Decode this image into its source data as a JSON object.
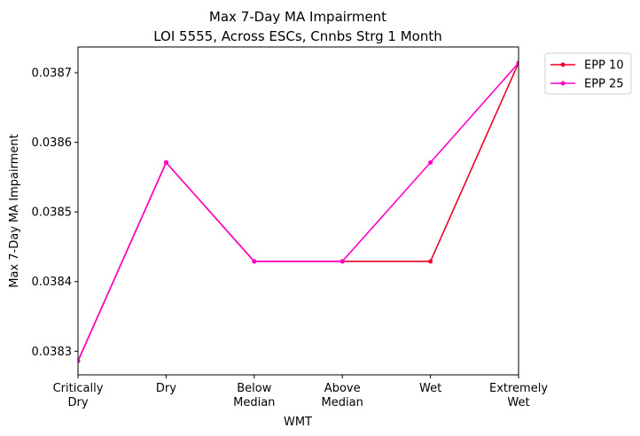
{
  "chart_data": {
    "type": "line",
    "title_line1": "Max 7-Day MA Impairment",
    "title_line2": "LOI 5555, Across ESCs, Cnnbs Strg 1 Month",
    "xlabel": "WMT",
    "ylabel": "Max 7-Day MA Impairment",
    "categories": [
      [
        "Critically",
        "Dry"
      ],
      [
        "Dry"
      ],
      [
        "Below",
        "Median"
      ],
      [
        "Above",
        "Median"
      ],
      [
        "Wet"
      ],
      [
        "Extremely",
        "Wet"
      ]
    ],
    "yticks": [
      {
        "value": 0.0383,
        "label": "0.0383"
      },
      {
        "value": 0.0384,
        "label": "0.0384"
      },
      {
        "value": 0.0385,
        "label": "0.0385"
      },
      {
        "value": 0.0386,
        "label": "0.0386"
      },
      {
        "value": 0.0387,
        "label": "0.0387"
      }
    ],
    "ylim": [
      0.038266,
      0.038737
    ],
    "grid": false,
    "legend_position": "outside-top-right",
    "series": [
      {
        "name": "EPP 10",
        "color": "#f0002c",
        "values": [
          0.038286,
          0.038571,
          0.038429,
          0.038429,
          0.038429,
          0.038714
        ]
      },
      {
        "name": "EPP 25",
        "color": "#ff00c8",
        "values": [
          0.038286,
          0.038571,
          0.038429,
          0.038429,
          0.038571,
          0.038714
        ]
      }
    ]
  }
}
